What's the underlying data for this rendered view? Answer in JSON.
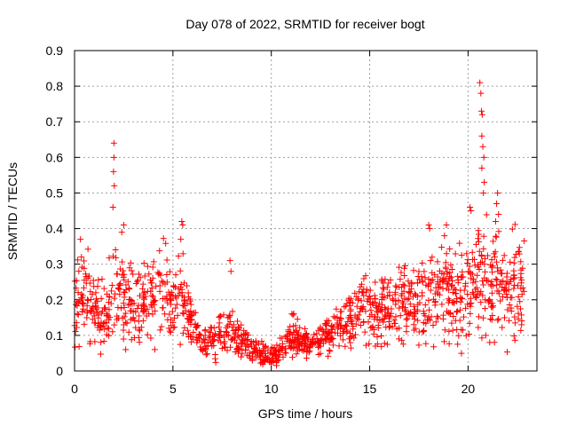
{
  "chart_data": {
    "type": "scatter",
    "title": "Day 078 of 2022, SRMTID for receiver bogt",
    "xlabel": "GPS time / hours",
    "ylabel": "SRMTID / TECUs",
    "xlim": [
      0,
      23.5
    ],
    "ylim": [
      0,
      0.9
    ],
    "x_ticks": [
      0,
      5,
      10,
      15,
      20
    ],
    "x_tick_labels": [
      "0",
      "5",
      "10",
      "15",
      "20"
    ],
    "y_ticks": [
      0,
      0.1,
      0.2,
      0.3,
      0.4,
      0.5,
      0.6,
      0.7,
      0.8,
      0.9
    ],
    "y_tick_labels": [
      "0",
      "0.1",
      "0.2",
      "0.3",
      "0.4",
      "0.5",
      "0.6",
      "0.7",
      "0.8",
      "0.9"
    ],
    "grid": true,
    "marker": "plus",
    "series": [
      {
        "name": "SRMTID",
        "color": "#ff0000",
        "profile_x": [
          0,
          0.5,
          1,
          1.5,
          2,
          2.5,
          3,
          3.5,
          4,
          4.5,
          5,
          5.5,
          6,
          6.5,
          7,
          7.5,
          8,
          8.5,
          9,
          9.5,
          10,
          10.5,
          11,
          11.5,
          12,
          12.5,
          13,
          13.5,
          14,
          14.5,
          15,
          15.5,
          16,
          16.5,
          17,
          17.5,
          18,
          18.5,
          19,
          19.5,
          20,
          20.5,
          21,
          21.5,
          22,
          22.5,
          22.9
        ],
        "profile_y": [
          0.2,
          0.22,
          0.17,
          0.16,
          0.2,
          0.22,
          0.17,
          0.2,
          0.21,
          0.22,
          0.19,
          0.21,
          0.12,
          0.08,
          0.09,
          0.1,
          0.11,
          0.08,
          0.06,
          0.05,
          0.04,
          0.06,
          0.11,
          0.08,
          0.07,
          0.09,
          0.11,
          0.13,
          0.15,
          0.17,
          0.18,
          0.17,
          0.19,
          0.2,
          0.18,
          0.2,
          0.21,
          0.23,
          0.22,
          0.21,
          0.24,
          0.27,
          0.25,
          0.26,
          0.24,
          0.23,
          0.23
        ],
        "spikes": [
          {
            "x": 0.3,
            "y": 0.37
          },
          {
            "x": 0.35,
            "y": 0.32
          },
          {
            "x": 2.0,
            "y": 0.64
          },
          {
            "x": 2.0,
            "y": 0.6
          },
          {
            "x": 1.98,
            "y": 0.56
          },
          {
            "x": 2.02,
            "y": 0.52
          },
          {
            "x": 1.95,
            "y": 0.46
          },
          {
            "x": 2.5,
            "y": 0.41
          },
          {
            "x": 2.4,
            "y": 0.39
          },
          {
            "x": 5.45,
            "y": 0.42
          },
          {
            "x": 5.5,
            "y": 0.41
          },
          {
            "x": 5.4,
            "y": 0.37
          },
          {
            "x": 7.9,
            "y": 0.31
          },
          {
            "x": 7.95,
            "y": 0.28
          },
          {
            "x": 18.0,
            "y": 0.41
          },
          {
            "x": 18.05,
            "y": 0.4
          },
          {
            "x": 18.9,
            "y": 0.41
          },
          {
            "x": 18.8,
            "y": 0.38
          },
          {
            "x": 20.6,
            "y": 0.81
          },
          {
            "x": 20.65,
            "y": 0.78
          },
          {
            "x": 20.68,
            "y": 0.73
          },
          {
            "x": 20.72,
            "y": 0.72
          },
          {
            "x": 20.7,
            "y": 0.66
          },
          {
            "x": 20.75,
            "y": 0.63
          },
          {
            "x": 20.8,
            "y": 0.6
          },
          {
            "x": 20.7,
            "y": 0.57
          },
          {
            "x": 20.82,
            "y": 0.53
          },
          {
            "x": 20.78,
            "y": 0.5
          },
          {
            "x": 20.1,
            "y": 0.46
          },
          {
            "x": 20.15,
            "y": 0.45
          },
          {
            "x": 21.5,
            "y": 0.5
          },
          {
            "x": 21.45,
            "y": 0.47
          },
          {
            "x": 21.55,
            "y": 0.44
          },
          {
            "x": 21.4,
            "y": 0.42
          },
          {
            "x": 2.6,
            "y": 0.06
          },
          {
            "x": 20.9,
            "y": 0.1
          },
          {
            "x": 21.1,
            "y": 0.08
          }
        ]
      }
    ]
  }
}
